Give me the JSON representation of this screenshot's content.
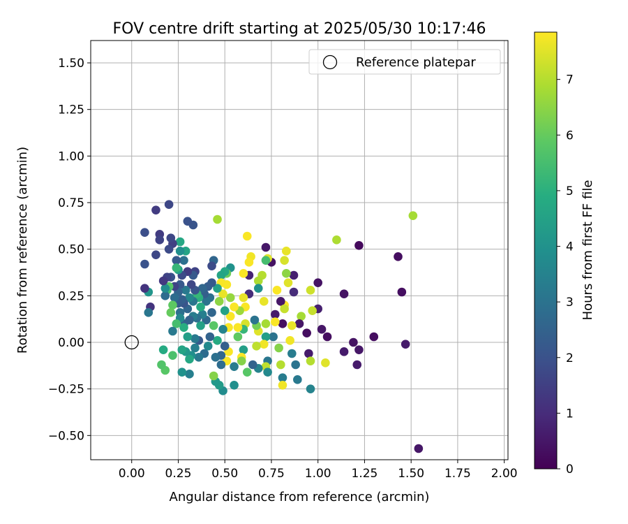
{
  "chart_data": {
    "type": "scatter",
    "title": "FOV centre drift starting at 2025/05/30 10:17:46",
    "xlabel": "Angular distance from reference (arcmin)",
    "ylabel": "Rotation from reference (arcmin)",
    "xlim": [
      -0.22,
      2.02
    ],
    "ylim": [
      -0.63,
      1.62
    ],
    "xticks": [
      0.0,
      0.25,
      0.5,
      0.75,
      1.0,
      1.25,
      1.5,
      1.75,
      2.0
    ],
    "xtick_labels": [
      "0.00",
      "0.25",
      "0.50",
      "0.75",
      "1.00",
      "1.25",
      "1.50",
      "1.75",
      "2.00"
    ],
    "yticks": [
      -0.5,
      -0.25,
      0.0,
      0.25,
      0.5,
      0.75,
      1.0,
      1.25,
      1.5
    ],
    "ytick_labels": [
      "−0.50",
      "−0.25",
      "0.00",
      "0.25",
      "0.50",
      "0.75",
      "1.00",
      "1.25",
      "1.50"
    ],
    "grid": true,
    "legend": {
      "position": "top-right",
      "entries": [
        "Reference platepar"
      ]
    },
    "reference_point": {
      "x": 0.0,
      "y": 0.0
    },
    "colorbar": {
      "label": "Hours from first FF file",
      "min": 0.0,
      "max": 7.85,
      "ticks": [
        0,
        1,
        2,
        3,
        4,
        5,
        6,
        7
      ],
      "tick_labels": [
        "0",
        "1",
        "2",
        "3",
        "4",
        "5",
        "6",
        "7"
      ],
      "colormap": "viridis"
    },
    "points": [
      {
        "x": 1.54,
        "y": -0.57,
        "h": 0.5
      },
      {
        "x": 1.51,
        "y": 0.68,
        "h": 6.8
      },
      {
        "x": 1.43,
        "y": 0.46,
        "h": 0.3
      },
      {
        "x": 1.45,
        "y": 0.27,
        "h": 0.3
      },
      {
        "x": 1.47,
        "y": -0.01,
        "h": 0.6
      },
      {
        "x": 1.3,
        "y": 0.03,
        "h": 0.3
      },
      {
        "x": 1.22,
        "y": 0.52,
        "h": 0.2
      },
      {
        "x": 1.19,
        "y": 0.0,
        "h": 0.4
      },
      {
        "x": 1.22,
        "y": -0.04,
        "h": 0.5
      },
      {
        "x": 1.21,
        "y": -0.12,
        "h": 0.6
      },
      {
        "x": 1.14,
        "y": 0.26,
        "h": 0.4
      },
      {
        "x": 1.14,
        "y": -0.05,
        "h": 0.6
      },
      {
        "x": 1.1,
        "y": 0.55,
        "h": 6.9
      },
      {
        "x": 1.05,
        "y": 0.03,
        "h": 0.3
      },
      {
        "x": 1.02,
        "y": 0.07,
        "h": 0.5
      },
      {
        "x": 1.0,
        "y": 0.32,
        "h": 0.4
      },
      {
        "x": 1.0,
        "y": 0.18,
        "h": 0.7
      },
      {
        "x": 1.04,
        "y": -0.11,
        "h": 7.5
      },
      {
        "x": 0.97,
        "y": 0.17,
        "h": 7.2
      },
      {
        "x": 0.96,
        "y": 0.28,
        "h": 7.3
      },
      {
        "x": 0.95,
        "y": -0.06,
        "h": 0.6
      },
      {
        "x": 0.96,
        "y": -0.1,
        "h": 7.0
      },
      {
        "x": 0.96,
        "y": -0.25,
        "h": 3.5
      },
      {
        "x": 0.94,
        "y": 0.05,
        "h": 0.3
      },
      {
        "x": 0.91,
        "y": 0.14,
        "h": 6.8
      },
      {
        "x": 0.9,
        "y": 0.1,
        "h": 0.5
      },
      {
        "x": 0.89,
        "y": -0.2,
        "h": 3.2
      },
      {
        "x": 0.88,
        "y": -0.12,
        "h": 3.0
      },
      {
        "x": 0.87,
        "y": 0.36,
        "h": 0.7
      },
      {
        "x": 0.87,
        "y": 0.27,
        "h": 1.0
      },
      {
        "x": 0.86,
        "y": 0.09,
        "h": 7.6
      },
      {
        "x": 0.85,
        "y": 0.01,
        "h": 7.7
      },
      {
        "x": 0.86,
        "y": -0.06,
        "h": 3.3
      },
      {
        "x": 0.84,
        "y": 0.32,
        "h": 7.5
      },
      {
        "x": 0.83,
        "y": 0.49,
        "h": 7.6
      },
      {
        "x": 0.82,
        "y": 0.44,
        "h": 7.4
      },
      {
        "x": 0.83,
        "y": 0.37,
        "h": 6.5
      },
      {
        "x": 0.82,
        "y": 0.2,
        "h": 7.8
      },
      {
        "x": 0.8,
        "y": 0.22,
        "h": 0.5
      },
      {
        "x": 0.81,
        "y": 0.1,
        "h": 0.3
      },
      {
        "x": 0.82,
        "y": 0.18,
        "h": 7.2
      },
      {
        "x": 0.79,
        "y": -0.03,
        "h": 6.4
      },
      {
        "x": 0.8,
        "y": -0.12,
        "h": 7.0
      },
      {
        "x": 0.81,
        "y": -0.19,
        "h": 3.3
      },
      {
        "x": 0.81,
        "y": -0.23,
        "h": 7.7
      },
      {
        "x": 0.78,
        "y": 0.28,
        "h": 7.8
      },
      {
        "x": 0.77,
        "y": 0.15,
        "h": 0.6
      },
      {
        "x": 0.77,
        "y": 0.11,
        "h": 7.8
      },
      {
        "x": 0.76,
        "y": 0.03,
        "h": 3.0
      },
      {
        "x": 0.75,
        "y": 0.43,
        "h": 0.4
      },
      {
        "x": 0.72,
        "y": 0.51,
        "h": 0.5
      },
      {
        "x": 0.73,
        "y": 0.45,
        "h": 7.5
      },
      {
        "x": 0.72,
        "y": 0.44,
        "h": 5.5
      },
      {
        "x": 0.71,
        "y": 0.22,
        "h": 7.6
      },
      {
        "x": 0.72,
        "y": 0.1,
        "h": 6.8
      },
      {
        "x": 0.72,
        "y": 0.03,
        "h": 4.4
      },
      {
        "x": 0.73,
        "y": -0.1,
        "h": 3.1
      },
      {
        "x": 0.72,
        "y": -0.13,
        "h": 7.1
      },
      {
        "x": 0.73,
        "y": -0.16,
        "h": 3.7
      },
      {
        "x": 0.71,
        "y": -0.01,
        "h": 7.7
      },
      {
        "x": 0.7,
        "y": 0.36,
        "h": 7.0
      },
      {
        "x": 0.68,
        "y": 0.33,
        "h": 6.9
      },
      {
        "x": 0.68,
        "y": 0.29,
        "h": 4.0
      },
      {
        "x": 0.68,
        "y": 0.06,
        "h": 7.5
      },
      {
        "x": 0.67,
        "y": 0.09,
        "h": 6.2
      },
      {
        "x": 0.67,
        "y": -0.02,
        "h": 7.1
      },
      {
        "x": 0.68,
        "y": -0.14,
        "h": 3.5
      },
      {
        "x": 0.66,
        "y": 0.12,
        "h": 3.0
      },
      {
        "x": 0.65,
        "y": -0.12,
        "h": 2.5
      },
      {
        "x": 0.64,
        "y": 0.46,
        "h": 7.7
      },
      {
        "x": 0.63,
        "y": 0.43,
        "h": 7.8
      },
      {
        "x": 0.63,
        "y": 0.36,
        "h": 0.8
      },
      {
        "x": 0.63,
        "y": 0.26,
        "h": 1.0
      },
      {
        "x": 0.62,
        "y": 0.57,
        "h": 7.8
      },
      {
        "x": 0.61,
        "y": 0.19,
        "h": 7.8
      },
      {
        "x": 0.61,
        "y": 0.1,
        "h": 7.4
      },
      {
        "x": 0.62,
        "y": -0.16,
        "h": 5.8
      },
      {
        "x": 0.6,
        "y": 0.37,
        "h": 7.8
      },
      {
        "x": 0.6,
        "y": 0.24,
        "h": 7.6
      },
      {
        "x": 0.6,
        "y": 0.07,
        "h": 5.2
      },
      {
        "x": 0.6,
        "y": -0.04,
        "h": 4.4
      },
      {
        "x": 0.59,
        "y": -0.08,
        "h": 7.8
      },
      {
        "x": 0.59,
        "y": -0.1,
        "h": 6.4
      },
      {
        "x": 0.58,
        "y": 0.17,
        "h": 6.7
      },
      {
        "x": 0.57,
        "y": 0.08,
        "h": 7.8
      },
      {
        "x": 0.57,
        "y": 0.03,
        "h": 5.9
      },
      {
        "x": 0.55,
        "y": 0.19,
        "h": 7.8
      },
      {
        "x": 0.55,
        "y": -0.13,
        "h": 3.3
      },
      {
        "x": 0.55,
        "y": -0.23,
        "h": 3.9
      },
      {
        "x": 0.53,
        "y": 0.4,
        "h": 4.0
      },
      {
        "x": 0.53,
        "y": 0.24,
        "h": 6.6
      },
      {
        "x": 0.53,
        "y": 0.14,
        "h": 7.8
      },
      {
        "x": 0.52,
        "y": 0.08,
        "h": 7.8
      },
      {
        "x": 0.52,
        "y": -0.05,
        "h": 7.8
      },
      {
        "x": 0.51,
        "y": 0.37,
        "h": 6.1
      },
      {
        "x": 0.51,
        "y": 0.31,
        "h": 7.8
      },
      {
        "x": 0.51,
        "y": -0.1,
        "h": 7.8
      },
      {
        "x": 0.5,
        "y": 0.38,
        "h": 4.7
      },
      {
        "x": 0.5,
        "y": 0.17,
        "h": 4.5
      },
      {
        "x": 0.5,
        "y": -0.02,
        "h": 2.4
      },
      {
        "x": 0.49,
        "y": 0.26,
        "h": 7.6
      },
      {
        "x": 0.49,
        "y": 0.07,
        "h": 3.5
      },
      {
        "x": 0.49,
        "y": -0.26,
        "h": 3.8
      },
      {
        "x": 0.48,
        "y": 0.36,
        "h": 4.6
      },
      {
        "x": 0.48,
        "y": 0.32,
        "h": 7.8
      },
      {
        "x": 0.48,
        "y": -0.07,
        "h": 2.6
      },
      {
        "x": 0.48,
        "y": -0.12,
        "h": 2.8
      },
      {
        "x": 0.47,
        "y": -0.23,
        "h": 4.3
      },
      {
        "x": 0.47,
        "y": 0.22,
        "h": 6.5
      },
      {
        "x": 0.46,
        "y": 0.66,
        "h": 6.8
      },
      {
        "x": 0.46,
        "y": 0.29,
        "h": 4.5
      },
      {
        "x": 0.46,
        "y": 0.01,
        "h": 4.8
      },
      {
        "x": 0.45,
        "y": -0.08,
        "h": 2.9
      },
      {
        "x": 0.45,
        "y": -0.21,
        "h": 4.2
      },
      {
        "x": 0.44,
        "y": 0.44,
        "h": 2.6
      },
      {
        "x": 0.44,
        "y": 0.09,
        "h": 5.8
      },
      {
        "x": 0.44,
        "y": -0.18,
        "h": 6.4
      },
      {
        "x": 0.43,
        "y": 0.41,
        "h": 1.8
      },
      {
        "x": 0.43,
        "y": 0.16,
        "h": 2.6
      },
      {
        "x": 0.43,
        "y": 0.32,
        "h": 2.2
      },
      {
        "x": 0.42,
        "y": 0.24,
        "h": 2.9
      },
      {
        "x": 0.42,
        "y": 0.03,
        "h": 2.5
      },
      {
        "x": 0.41,
        "y": 0.3,
        "h": 2.3
      },
      {
        "x": 0.41,
        "y": -0.02,
        "h": 3.7
      },
      {
        "x": 0.4,
        "y": 0.22,
        "h": 3.0
      },
      {
        "x": 0.4,
        "y": 0.12,
        "h": 2.7
      },
      {
        "x": 0.39,
        "y": 0.26,
        "h": 2.4
      },
      {
        "x": 0.39,
        "y": -0.06,
        "h": 2.8
      },
      {
        "x": 0.38,
        "y": 0.15,
        "h": 3.4
      },
      {
        "x": 0.38,
        "y": 0.29,
        "h": 2.6
      },
      {
        "x": 0.37,
        "y": 0.09,
        "h": 4.5
      },
      {
        "x": 0.37,
        "y": 0.19,
        "h": 4.8
      },
      {
        "x": 0.36,
        "y": 0.01,
        "h": 2.2
      },
      {
        "x": 0.36,
        "y": -0.08,
        "h": 3.2
      },
      {
        "x": 0.36,
        "y": 0.24,
        "h": 5.0
      },
      {
        "x": 0.35,
        "y": 0.26,
        "h": 5.2
      },
      {
        "x": 0.35,
        "y": 0.13,
        "h": 2.9
      },
      {
        "x": 0.34,
        "y": 0.38,
        "h": 1.6
      },
      {
        "x": 0.34,
        "y": 0.28,
        "h": 2.1
      },
      {
        "x": 0.34,
        "y": 0.02,
        "h": 3.2
      },
      {
        "x": 0.34,
        "y": -0.03,
        "h": 3.4
      },
      {
        "x": 0.33,
        "y": 0.36,
        "h": 2.2
      },
      {
        "x": 0.33,
        "y": 0.63,
        "h": 2.1
      },
      {
        "x": 0.33,
        "y": 0.22,
        "h": 3.1
      },
      {
        "x": 0.33,
        "y": 0.14,
        "h": 3.3
      },
      {
        "x": 0.32,
        "y": 0.31,
        "h": 1.7
      },
      {
        "x": 0.32,
        "y": -0.07,
        "h": 3.9
      },
      {
        "x": 0.31,
        "y": 0.12,
        "h": 2.5
      },
      {
        "x": 0.31,
        "y": 0.24,
        "h": 3.6
      },
      {
        "x": 0.31,
        "y": -0.09,
        "h": 4.7
      },
      {
        "x": 0.31,
        "y": -0.17,
        "h": 3.4
      },
      {
        "x": 0.3,
        "y": 0.65,
        "h": 2.0
      },
      {
        "x": 0.3,
        "y": 0.38,
        "h": 1.4
      },
      {
        "x": 0.3,
        "y": 0.18,
        "h": 2.6
      },
      {
        "x": 0.3,
        "y": 0.03,
        "h": 4.4
      },
      {
        "x": 0.29,
        "y": 0.49,
        "h": 4.6
      },
      {
        "x": 0.29,
        "y": 0.28,
        "h": 3.2
      },
      {
        "x": 0.29,
        "y": -0.05,
        "h": 4.2
      },
      {
        "x": 0.28,
        "y": 0.44,
        "h": 2.9
      },
      {
        "x": 0.28,
        "y": 0.21,
        "h": 2.1
      },
      {
        "x": 0.28,
        "y": 0.1,
        "h": 2.5
      },
      {
        "x": 0.28,
        "y": 0.08,
        "h": 4.9
      },
      {
        "x": 0.27,
        "y": 0.36,
        "h": 1.8
      },
      {
        "x": 0.27,
        "y": 0.23,
        "h": 2.4
      },
      {
        "x": 0.27,
        "y": -0.16,
        "h": 4.0
      },
      {
        "x": 0.27,
        "y": -0.04,
        "h": 4.6
      },
      {
        "x": 0.26,
        "y": 0.54,
        "h": 4.7
      },
      {
        "x": 0.26,
        "y": 0.49,
        "h": 3.9
      },
      {
        "x": 0.26,
        "y": 0.31,
        "h": 2.2
      },
      {
        "x": 0.26,
        "y": 0.16,
        "h": 2.9
      },
      {
        "x": 0.26,
        "y": 0.13,
        "h": 3.7
      },
      {
        "x": 0.25,
        "y": 0.39,
        "h": 4.4
      },
      {
        "x": 0.25,
        "y": 0.27,
        "h": 2.5
      },
      {
        "x": 0.25,
        "y": 0.21,
        "h": 2.3
      },
      {
        "x": 0.24,
        "y": 0.44,
        "h": 2.2
      },
      {
        "x": 0.24,
        "y": 0.1,
        "h": 5.5
      },
      {
        "x": 0.24,
        "y": 0.4,
        "h": 5.2
      },
      {
        "x": 0.23,
        "y": 0.3,
        "h": 1.6
      },
      {
        "x": 0.23,
        "y": 0.24,
        "h": 2.8
      },
      {
        "x": 0.22,
        "y": 0.53,
        "h": 1.5
      },
      {
        "x": 0.22,
        "y": 0.2,
        "h": 5.9
      },
      {
        "x": 0.22,
        "y": 0.06,
        "h": 3.2
      },
      {
        "x": 0.22,
        "y": -0.07,
        "h": 5.6
      },
      {
        "x": 0.21,
        "y": 0.35,
        "h": 2.0
      },
      {
        "x": 0.21,
        "y": 0.16,
        "h": 6.0
      },
      {
        "x": 0.21,
        "y": 0.56,
        "h": 1.7
      },
      {
        "x": 0.2,
        "y": 0.74,
        "h": 1.7
      },
      {
        "x": 0.2,
        "y": 0.5,
        "h": 1.8
      },
      {
        "x": 0.2,
        "y": 0.3,
        "h": 5.8
      },
      {
        "x": 0.19,
        "y": 0.35,
        "h": 1.6
      },
      {
        "x": 0.19,
        "y": 0.28,
        "h": 5.4
      },
      {
        "x": 0.18,
        "y": 0.25,
        "h": 2.8
      },
      {
        "x": 0.18,
        "y": 0.29,
        "h": 3.8
      },
      {
        "x": 0.18,
        "y": -0.15,
        "h": 5.8
      },
      {
        "x": 0.17,
        "y": -0.04,
        "h": 4.8
      },
      {
        "x": 0.17,
        "y": 0.33,
        "h": 1.3
      },
      {
        "x": 0.16,
        "y": -0.12,
        "h": 5.7
      },
      {
        "x": 0.15,
        "y": 0.58,
        "h": 1.4
      },
      {
        "x": 0.15,
        "y": 0.55,
        "h": 1.6
      },
      {
        "x": 0.13,
        "y": 0.71,
        "h": 1.4
      },
      {
        "x": 0.13,
        "y": 0.47,
        "h": 1.7
      },
      {
        "x": 0.1,
        "y": 0.19,
        "h": 1.2
      },
      {
        "x": 0.09,
        "y": 0.27,
        "h": 4.1
      },
      {
        "x": 0.09,
        "y": 0.16,
        "h": 3.1
      },
      {
        "x": 0.07,
        "y": 0.59,
        "h": 1.9
      },
      {
        "x": 0.07,
        "y": 0.42,
        "h": 2.0
      },
      {
        "x": 0.07,
        "y": 0.29,
        "h": 1.2
      }
    ]
  }
}
